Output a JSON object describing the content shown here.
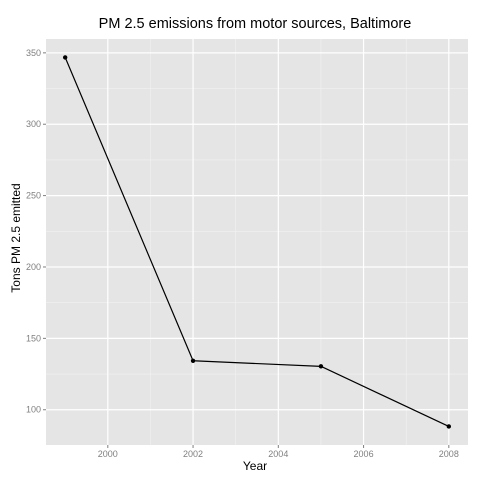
{
  "chart_data": {
    "type": "line",
    "title": "PM 2.5 emissions from motor sources, Baltimore",
    "xlabel": "Year",
    "ylabel": "Tons PM 2.5 emitted",
    "x": [
      1999,
      2002,
      2005,
      2008
    ],
    "series": [
      {
        "values": [
          346.8,
          134.3,
          130.4,
          88.3
        ]
      }
    ],
    "xlim": [
      1998.55,
      2008.45
    ],
    "ylim": [
      75.3,
      359.7
    ],
    "xticks": [
      2000,
      2002,
      2004,
      2006,
      2008
    ],
    "xtick_labels": [
      "2000",
      "2002",
      "2004",
      "2006",
      "2008"
    ],
    "yticks": [
      100,
      150,
      200,
      250,
      300,
      350
    ],
    "ytick_labels": [
      "100",
      "150",
      "200",
      "250",
      "300",
      "350"
    ],
    "grid": true,
    "colors": {
      "panel": "#e5e5e5",
      "grid": "#ffffff",
      "line": "#000000"
    }
  }
}
